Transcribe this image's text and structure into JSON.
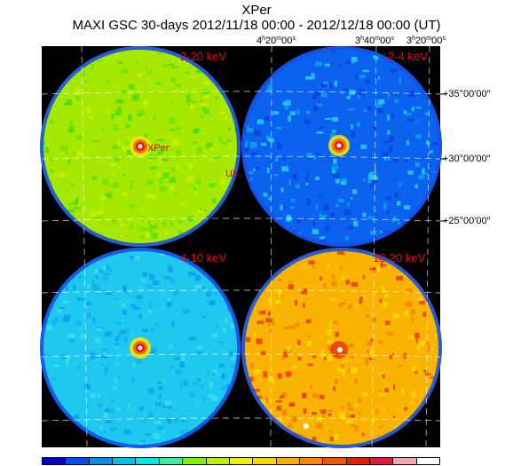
{
  "title": "XPer",
  "subtitle": "MAXI GSC 30-days 2012/11/18 00:00 - 2012/12/18 00:00 (UT)",
  "ra_labels": [
    {
      "h": "4",
      "m": "20",
      "s": "00"
    },
    {
      "h": "3",
      "m": "40",
      "s": "00"
    },
    {
      "h": "3",
      "m": "20",
      "s": "00"
    }
  ],
  "dec_labels": [
    "+35°00′00″",
    "+30°00′00″",
    "+25°00′00″"
  ],
  "panels": [
    {
      "band": "2-20 keV",
      "bg": "#a7e800",
      "speckle": [
        "#6ee000",
        "#d0f000",
        "#50d818"
      ]
    },
    {
      "band": "2-4 keV",
      "bg": "#0a62ee",
      "speckle": [
        "#10a8ee",
        "#0c40dd",
        "#2ad4f0"
      ]
    },
    {
      "band": "4-10 keV",
      "bg": "#1ec8ef",
      "speckle": [
        "#14acee",
        "#3ee0ea",
        "#129aee"
      ]
    },
    {
      "band": "10-20 keV",
      "bg": "#f8b400",
      "speckle": [
        "#ee3010",
        "#f48000",
        "#fade00"
      ]
    }
  ],
  "sources": [
    "XPer",
    "UX"
  ],
  "colorbar": [
    "#0000cc",
    "#0050ee",
    "#0090ee",
    "#00c0ee",
    "#00e8e8",
    "#38f0a0",
    "#80f000",
    "#c0f000",
    "#f0f000",
    "#f8d800",
    "#f8b000",
    "#f88800",
    "#f05800",
    "#e82000",
    "#e81838",
    "#f0a8b0",
    "#ffffff"
  ]
}
